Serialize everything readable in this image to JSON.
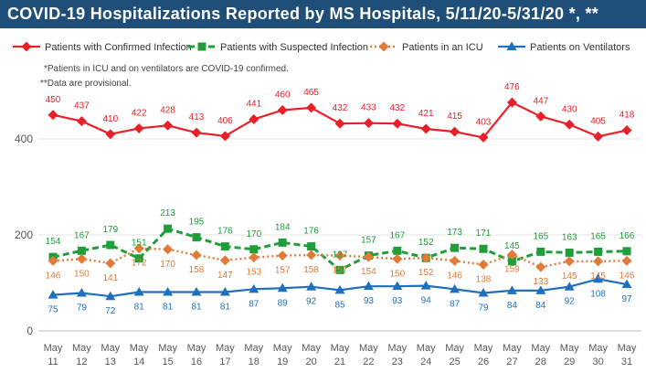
{
  "title": "COVID-19 Hospitalizations Reported by MS Hospitals, 5/11/20-5/31/20 *, **",
  "notes": [
    "*Patients in ICU and on ventilators are COVID-19 confirmed.",
    "**Data are provisional."
  ],
  "chart_data": {
    "type": "line",
    "title": "COVID-19 Hospitalizations Reported by MS Hospitals, 5/11/20-5/31/20 *, **",
    "x": [
      [
        "May",
        "11"
      ],
      [
        "May",
        "12"
      ],
      [
        "May",
        "13"
      ],
      [
        "May",
        "14"
      ],
      [
        "May",
        "15"
      ],
      [
        "May",
        "16"
      ],
      [
        "May",
        "17"
      ],
      [
        "May",
        "18"
      ],
      [
        "May",
        "19"
      ],
      [
        "May",
        "20"
      ],
      [
        "May",
        "21"
      ],
      [
        "May",
        "22"
      ],
      [
        "May",
        "23"
      ],
      [
        "May",
        "24"
      ],
      [
        "May",
        "25"
      ],
      [
        "May",
        "26"
      ],
      [
        "May",
        "27"
      ],
      [
        "May",
        "28"
      ],
      [
        "May",
        "29"
      ],
      [
        "May",
        "30"
      ],
      [
        "May",
        "31"
      ]
    ],
    "ylim": [
      0,
      500
    ],
    "yticks": [
      0,
      200,
      400
    ],
    "grid": true,
    "legend_position": "top",
    "series": [
      {
        "name": "Patients with Confirmed Infection",
        "color": "#e8202a",
        "label_color": "#e8202a",
        "marker": "diamond",
        "dash": "solid",
        "values": [
          450,
          437,
          410,
          422,
          428,
          413,
          406,
          441,
          460,
          465,
          432,
          433,
          432,
          421,
          415,
          403,
          476,
          447,
          430,
          405,
          418
        ]
      },
      {
        "name": "Patients with Suspected Infection",
        "color": "#1f9e3a",
        "label_color": "#1f9e3a",
        "marker": "square",
        "dash": "dashed",
        "values": [
          154,
          167,
          179,
          151,
          213,
          195,
          176,
          170,
          184,
          176,
          127,
          157,
          167,
          152,
          173,
          171,
          145,
          165,
          163,
          165,
          166
        ]
      },
      {
        "name": "Patients in an ICU",
        "color": "#e07b39",
        "label_color": "#e07b39",
        "marker": "diamond",
        "dash": "dotted",
        "values": [
          146,
          150,
          141,
          172,
          170,
          158,
          147,
          153,
          157,
          158,
          157,
          154,
          150,
          152,
          146,
          138,
          159,
          133,
          145,
          145,
          146
        ]
      },
      {
        "name": "Patients on Ventilators",
        "color": "#1f6fbf",
        "label_color": "#1f6fbf",
        "marker": "triangle",
        "dash": "solid",
        "values": [
          75,
          79,
          72,
          81,
          81,
          81,
          81,
          87,
          89,
          92,
          85,
          93,
          93,
          94,
          87,
          79,
          84,
          84,
          92,
          108,
          97
        ]
      }
    ]
  }
}
